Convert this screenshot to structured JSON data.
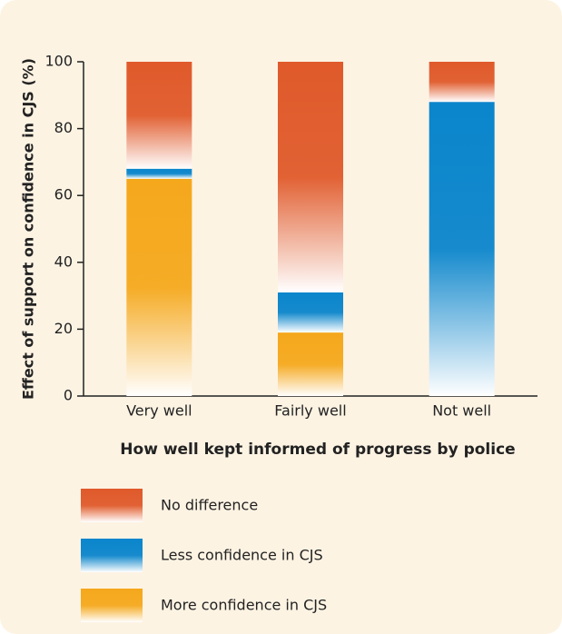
{
  "chart_data": {
    "type": "stacked_bar",
    "categories": [
      "Very well",
      "Fairly well",
      "Not well"
    ],
    "series": [
      {
        "name": "More confidence in CJS",
        "color": "#f5a81c",
        "values": [
          65,
          19,
          0
        ]
      },
      {
        "name": "Less confidence in CJS",
        "color": "#0a85cc",
        "values": [
          3,
          12,
          88
        ]
      },
      {
        "name": "No difference",
        "color": "#e05a2b",
        "values": [
          32,
          69,
          12
        ]
      }
    ],
    "y_label": "Effect of support on confidence in CJS (%)",
    "x_label": "How well kept informed of progress by police",
    "ylim": [
      0,
      100
    ],
    "yticks": [
      0,
      20,
      40,
      60,
      80,
      100
    ]
  }
}
